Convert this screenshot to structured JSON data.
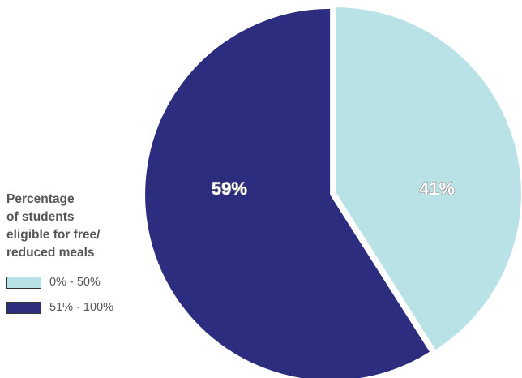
{
  "chart_data": {
    "type": "pie",
    "title": "",
    "slices": [
      {
        "name": "0% - 50%",
        "value": 41,
        "label": "41%",
        "color": "#b9e2e6"
      },
      {
        "name": "51% - 100%",
        "value": 59,
        "label": "59%",
        "color": "#2c2d7e"
      }
    ]
  },
  "legend": {
    "title_lines": [
      "Percentage",
      "of students",
      "eligible for free/",
      "reduced meals"
    ],
    "items": [
      {
        "label": "0% - 50%",
        "color": "#b9e2e6"
      },
      {
        "label": "51% - 100%",
        "color": "#2c2d7e"
      }
    ]
  }
}
